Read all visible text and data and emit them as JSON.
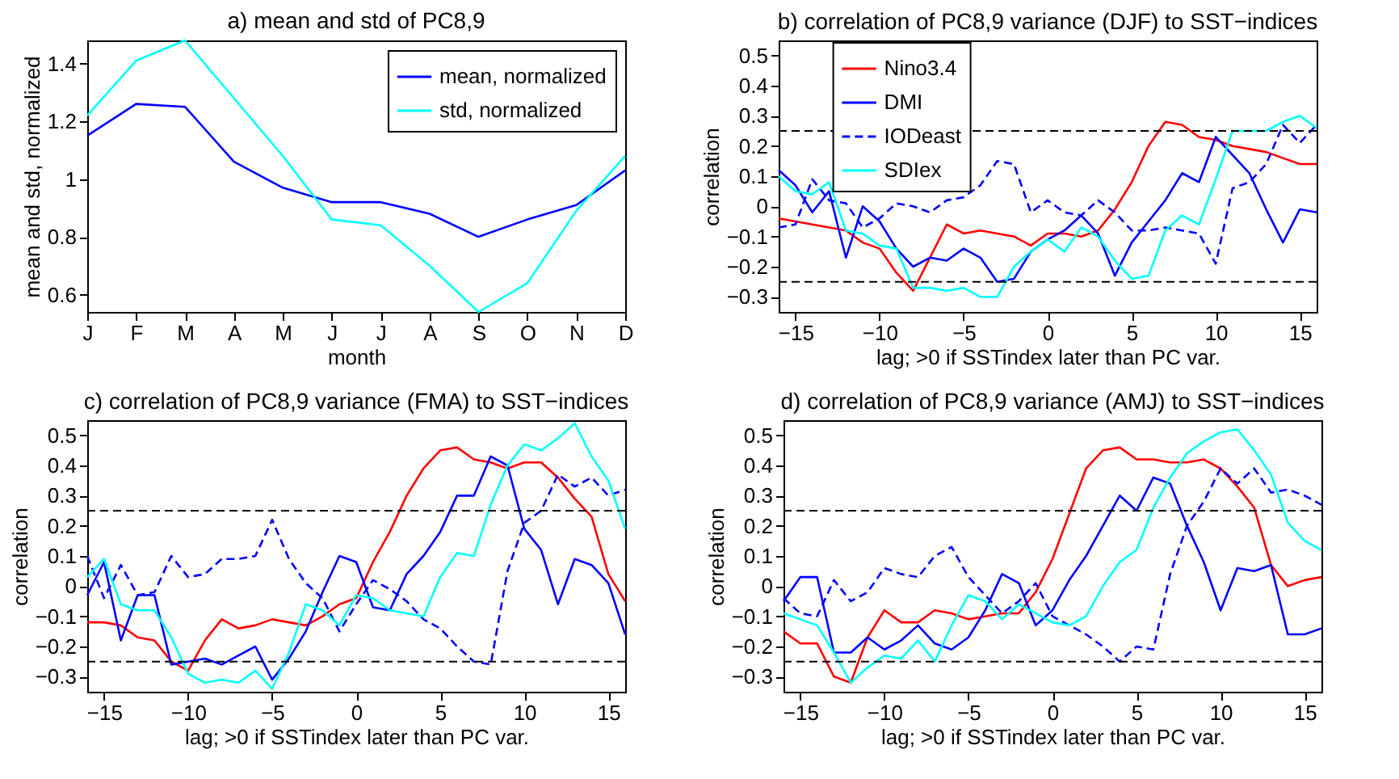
{
  "chart_data": [
    {
      "type": "line",
      "title": "a)   mean and std of PC8,9",
      "xlabel": "month",
      "ylabel": "mean and std, normalized",
      "categories": [
        "J",
        "F",
        "M",
        "A",
        "M",
        "J",
        "J",
        "A",
        "S",
        "O",
        "N",
        "D"
      ],
      "series": [
        {
          "name": "mean, normalized",
          "color": "#0000ff",
          "line_style": "solid",
          "values": [
            1.15,
            1.26,
            1.25,
            1.06,
            0.97,
            0.92,
            0.92,
            0.88,
            0.8,
            0.86,
            0.91,
            1.03
          ]
        },
        {
          "name": "std, normalized",
          "color": "#00ffff",
          "line_style": "solid",
          "values": [
            1.22,
            1.41,
            1.48,
            1.28,
            1.08,
            0.86,
            0.84,
            0.7,
            0.54,
            0.64,
            0.89,
            1.08
          ]
        }
      ],
      "ylim": [
        0.54,
        1.48
      ],
      "yticks": [
        0.6,
        0.8,
        1,
        1.2,
        1.4
      ],
      "legend": "top right"
    },
    {
      "type": "line",
      "title": "b)   correlation of PC8,9 variance (DJF)  to SST−indices",
      "xlabel": "lag; >0 if SSTindex later than PC var.",
      "ylabel": "correlation",
      "x": [
        -16,
        -15,
        -14,
        -13,
        -12,
        -11,
        -10,
        -9,
        -8,
        -7,
        -6,
        -5,
        -4,
        -3,
        -2,
        -1,
        0,
        1,
        2,
        3,
        4,
        5,
        6,
        7,
        8,
        9,
        10,
        11,
        12,
        13,
        14,
        15,
        16
      ],
      "series": [
        {
          "name": "Nino3.4",
          "color": "#ff0000",
          "line_style": "solid",
          "values": [
            -0.04,
            -0.05,
            -0.06,
            -0.07,
            -0.08,
            -0.12,
            -0.14,
            -0.22,
            -0.28,
            -0.17,
            -0.06,
            -0.09,
            -0.08,
            -0.09,
            -0.1,
            -0.13,
            -0.09,
            -0.09,
            -0.1,
            -0.08,
            -0.01,
            0.08,
            0.2,
            0.28,
            0.27,
            0.23,
            0.22,
            0.2,
            0.19,
            0.18,
            0.16,
            0.14,
            0.14
          ]
        },
        {
          "name": "DMI",
          "color": "#0000ff",
          "line_style": "solid",
          "values": [
            0.12,
            0.07,
            -0.02,
            0.05,
            -0.17,
            0.0,
            -0.05,
            -0.14,
            -0.2,
            -0.17,
            -0.18,
            -0.14,
            -0.17,
            -0.25,
            -0.24,
            -0.15,
            -0.11,
            -0.08,
            -0.03,
            -0.09,
            -0.23,
            -0.12,
            -0.05,
            0.02,
            0.11,
            0.08,
            0.23,
            0.17,
            0.11,
            -0.01,
            -0.12,
            -0.01,
            -0.02
          ]
        },
        {
          "name": "IODeast",
          "color": "#0000ff",
          "line_style": "dashed",
          "values": [
            -0.07,
            -0.06,
            0.09,
            0.02,
            0.01,
            -0.07,
            -0.04,
            0.01,
            0.0,
            -0.02,
            0.02,
            0.03,
            0.07,
            0.15,
            0.14,
            -0.02,
            0.02,
            -0.02,
            -0.03,
            0.02,
            -0.02,
            -0.08,
            -0.08,
            -0.07,
            -0.08,
            -0.09,
            -0.19,
            0.06,
            0.08,
            0.14,
            0.27,
            0.21,
            0.27
          ]
        },
        {
          "name": "SDIex",
          "color": "#00ffff",
          "line_style": "solid",
          "values": [
            0.1,
            0.05,
            0.04,
            0.08,
            -0.08,
            -0.09,
            -0.13,
            -0.14,
            -0.27,
            -0.27,
            -0.28,
            -0.27,
            -0.3,
            -0.3,
            -0.2,
            -0.15,
            -0.11,
            -0.15,
            -0.07,
            -0.1,
            -0.18,
            -0.24,
            -0.23,
            -0.08,
            -0.03,
            -0.06,
            0.09,
            0.25,
            0.25,
            0.25,
            0.28,
            0.3,
            0.26
          ]
        }
      ],
      "xlim": [
        -16,
        16
      ],
      "xticks": [
        -15,
        -10,
        -5,
        0,
        5,
        10,
        15
      ],
      "ylim": [
        -0.35,
        0.55
      ],
      "yticks": [
        -0.3,
        -0.2,
        -0.1,
        0,
        0.1,
        0.2,
        0.3,
        0.4,
        0.5
      ],
      "legend": "top left",
      "ref_lines": [
        {
          "axis": "y",
          "value": 0.25,
          "line_style": "dashed"
        },
        {
          "axis": "y",
          "value": -0.25,
          "line_style": "dashed"
        }
      ]
    },
    {
      "type": "line",
      "title": "c)   correlation of PC8,9 variance (FMA)  to SST−indices",
      "xlabel": "lag; >0 if SSTindex later than PC var.",
      "ylabel": "correlation",
      "x": [
        -16,
        -15,
        -14,
        -13,
        -12,
        -11,
        -10,
        -9,
        -8,
        -7,
        -6,
        -5,
        -4,
        -3,
        -2,
        -1,
        0,
        1,
        2,
        3,
        4,
        5,
        6,
        7,
        8,
        9,
        10,
        11,
        12,
        13,
        14,
        15,
        16
      ],
      "series": [
        {
          "color": "#ff0000",
          "line_style": "solid",
          "values": [
            -0.12,
            -0.12,
            -0.13,
            -0.17,
            -0.18,
            -0.25,
            -0.28,
            -0.18,
            -0.11,
            -0.14,
            -0.13,
            -0.11,
            -0.12,
            -0.13,
            -0.1,
            -0.06,
            -0.04,
            0.08,
            0.18,
            0.3,
            0.39,
            0.45,
            0.46,
            0.42,
            0.41,
            0.39,
            0.41,
            0.41,
            0.36,
            0.29,
            0.23,
            0.04,
            -0.05
          ]
        },
        {
          "color": "#0000ff",
          "line_style": "solid",
          "values": [
            -0.03,
            0.08,
            -0.18,
            -0.03,
            -0.03,
            -0.26,
            -0.25,
            -0.24,
            -0.26,
            -0.23,
            -0.2,
            -0.31,
            -0.24,
            -0.15,
            -0.02,
            0.1,
            0.08,
            -0.07,
            -0.08,
            0.04,
            0.1,
            0.18,
            0.3,
            0.3,
            0.43,
            0.4,
            0.19,
            0.12,
            -0.06,
            0.09,
            0.07,
            0.01,
            -0.16
          ]
        },
        {
          "color": "#0000ff",
          "line_style": "dashed",
          "values": [
            0.1,
            -0.04,
            0.07,
            -0.03,
            -0.02,
            0.1,
            0.03,
            0.04,
            0.09,
            0.09,
            0.1,
            0.22,
            0.09,
            0.01,
            -0.04,
            -0.15,
            -0.06,
            0.02,
            -0.01,
            -0.05,
            -0.11,
            -0.14,
            -0.2,
            -0.25,
            -0.26,
            0.05,
            0.21,
            0.25,
            0.37,
            0.33,
            0.36,
            0.3,
            0.32
          ]
        },
        {
          "color": "#00ffff",
          "line_style": "solid",
          "values": [
            0.03,
            0.09,
            -0.06,
            -0.08,
            -0.08,
            -0.17,
            -0.29,
            -0.32,
            -0.31,
            -0.32,
            -0.28,
            -0.34,
            -0.22,
            -0.06,
            -0.08,
            -0.13,
            -0.03,
            -0.04,
            -0.08,
            -0.09,
            -0.1,
            0.03,
            0.11,
            0.1,
            0.27,
            0.4,
            0.47,
            0.45,
            0.49,
            0.54,
            0.43,
            0.35,
            0.19
          ]
        }
      ],
      "xlim": [
        -16,
        16
      ],
      "xticks": [
        -15,
        -10,
        -5,
        0,
        5,
        10,
        15
      ],
      "ylim": [
        -0.35,
        0.55
      ],
      "yticks": [
        -0.3,
        -0.2,
        -0.1,
        0,
        0.1,
        0.2,
        0.3,
        0.4,
        0.5
      ],
      "ref_lines": [
        {
          "axis": "y",
          "value": 0.25,
          "line_style": "dashed"
        },
        {
          "axis": "y",
          "value": -0.25,
          "line_style": "dashed"
        }
      ]
    },
    {
      "type": "line",
      "title": "d)   correlation of PC8,9 variance (AMJ)  to SST−indices",
      "xlabel": "lag; >0 if SSTindex later than PC var.",
      "ylabel": "correlation",
      "x": [
        -16,
        -15,
        -14,
        -13,
        -12,
        -11,
        -10,
        -9,
        -8,
        -7,
        -6,
        -5,
        -4,
        -3,
        -2,
        -1,
        0,
        1,
        2,
        3,
        4,
        5,
        6,
        7,
        8,
        9,
        10,
        11,
        12,
        13,
        14,
        15,
        16
      ],
      "series": [
        {
          "color": "#ff0000",
          "line_style": "solid",
          "values": [
            -0.15,
            -0.19,
            -0.19,
            -0.3,
            -0.32,
            -0.17,
            -0.08,
            -0.12,
            -0.12,
            -0.08,
            -0.09,
            -0.11,
            -0.1,
            -0.09,
            -0.09,
            -0.02,
            0.09,
            0.24,
            0.39,
            0.45,
            0.46,
            0.42,
            0.42,
            0.41,
            0.41,
            0.42,
            0.39,
            0.33,
            0.26,
            0.07,
            0.0,
            0.02,
            0.03
          ]
        },
        {
          "color": "#0000ff",
          "line_style": "solid",
          "values": [
            -0.05,
            0.03,
            0.03,
            -0.22,
            -0.22,
            -0.17,
            -0.21,
            -0.18,
            -0.13,
            -0.19,
            -0.21,
            -0.17,
            -0.08,
            0.04,
            0.01,
            -0.13,
            -0.08,
            0.02,
            0.1,
            0.2,
            0.3,
            0.25,
            0.36,
            0.34,
            0.2,
            0.08,
            -0.08,
            0.06,
            0.05,
            0.07,
            -0.16,
            -0.16,
            -0.14
          ]
        },
        {
          "color": "#0000ff",
          "line_style": "dashed",
          "values": [
            -0.04,
            -0.09,
            -0.1,
            0.02,
            -0.05,
            -0.02,
            0.06,
            0.04,
            0.03,
            0.1,
            0.13,
            0.03,
            -0.03,
            -0.09,
            -0.05,
            0.01,
            -0.1,
            -0.13,
            -0.16,
            -0.2,
            -0.25,
            -0.2,
            -0.21,
            0.04,
            0.2,
            0.28,
            0.39,
            0.34,
            0.39,
            0.31,
            0.32,
            0.3,
            0.27
          ]
        },
        {
          "color": "#00ffff",
          "line_style": "solid",
          "values": [
            -0.09,
            -0.11,
            -0.13,
            -0.22,
            -0.32,
            -0.27,
            -0.23,
            -0.24,
            -0.18,
            -0.25,
            -0.13,
            -0.03,
            -0.05,
            -0.11,
            -0.06,
            -0.09,
            -0.12,
            -0.13,
            -0.1,
            0.0,
            0.08,
            0.12,
            0.26,
            0.36,
            0.44,
            0.48,
            0.51,
            0.52,
            0.45,
            0.37,
            0.21,
            0.15,
            0.12
          ]
        }
      ],
      "xlim": [
        -16,
        16
      ],
      "xticks": [
        -15,
        -10,
        -5,
        0,
        5,
        10,
        15
      ],
      "ylim": [
        -0.35,
        0.55
      ],
      "yticks": [
        -0.3,
        -0.2,
        -0.1,
        0,
        0.1,
        0.2,
        0.3,
        0.4,
        0.5
      ],
      "ref_lines": [
        {
          "axis": "y",
          "value": 0.25,
          "line_style": "dashed"
        },
        {
          "axis": "y",
          "value": -0.25,
          "line_style": "dashed"
        }
      ]
    }
  ]
}
